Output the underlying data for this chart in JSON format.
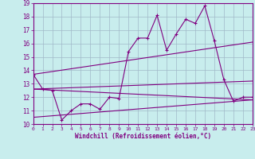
{
  "xlabel": "Windchill (Refroidissement éolien,°C)",
  "ylim": [
    10,
    19
  ],
  "xlim": [
    0,
    23
  ],
  "yticks": [
    10,
    11,
    12,
    13,
    14,
    15,
    16,
    17,
    18,
    19
  ],
  "xticks": [
    0,
    1,
    2,
    3,
    4,
    5,
    6,
    7,
    8,
    9,
    10,
    11,
    12,
    13,
    14,
    15,
    16,
    17,
    18,
    19,
    20,
    21,
    22,
    23
  ],
  "bg_color": "#c8eded",
  "line_color": "#800080",
  "grid_color": "#a0b8c8",
  "jagged_x": [
    0,
    1,
    2,
    3,
    4,
    5,
    6,
    7,
    8,
    9,
    10,
    11,
    12,
    13,
    14,
    15,
    16,
    17,
    18,
    19,
    20,
    21,
    22,
    23
  ],
  "jagged_y": [
    13.7,
    12.6,
    12.5,
    10.3,
    11.0,
    11.5,
    11.5,
    11.1,
    12.0,
    11.9,
    15.4,
    16.4,
    16.4,
    18.1,
    15.5,
    16.7,
    17.8,
    17.5,
    18.8,
    16.2,
    13.3,
    11.7,
    12.0,
    12.0
  ],
  "trend1_x": [
    0,
    23
  ],
  "trend1_y": [
    13.7,
    16.1
  ],
  "trend2_x": [
    0,
    23
  ],
  "trend2_y": [
    12.6,
    13.2
  ],
  "trend3_x": [
    0,
    23
  ],
  "trend3_y": [
    12.6,
    11.8
  ],
  "trend4_x": [
    0,
    23
  ],
  "trend4_y": [
    10.5,
    11.8
  ]
}
